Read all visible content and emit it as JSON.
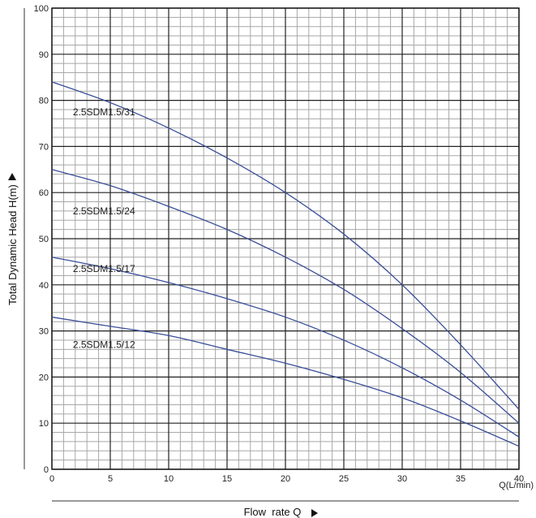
{
  "chart_data": {
    "type": "line",
    "xlabel": "Flow  rate Q",
    "xunit": "Q(L/min)",
    "ylabel": "Total Dynamic Head H(m)",
    "xlim": [
      0,
      40
    ],
    "ylim": [
      0,
      100
    ],
    "x_ticks": [
      0,
      5,
      10,
      15,
      20,
      25,
      30,
      35,
      40
    ],
    "y_ticks": [
      0,
      10,
      20,
      30,
      40,
      50,
      60,
      70,
      80,
      90,
      100
    ],
    "grid": true,
    "series": [
      {
        "name": "2.5SDM1.5/31",
        "x": [
          0,
          5,
          10,
          15,
          20,
          25,
          30,
          35,
          40
        ],
        "y": [
          84,
          79.5,
          74,
          67.5,
          60,
          51,
          40,
          27,
          13
        ]
      },
      {
        "name": "2.5SDM1.5/24",
        "x": [
          0,
          5,
          10,
          15,
          20,
          25,
          30,
          35,
          40
        ],
        "y": [
          65,
          61.5,
          57,
          52,
          46,
          39,
          30.5,
          21,
          10
        ]
      },
      {
        "name": "2.5SDM1.5/17",
        "x": [
          0,
          5,
          10,
          15,
          20,
          25,
          30,
          35,
          40
        ],
        "y": [
          46,
          43.5,
          40.5,
          37,
          33,
          28,
          22,
          15,
          7
        ]
      },
      {
        "name": "2.5SDM1.5/12",
        "x": [
          0,
          5,
          10,
          15,
          20,
          25,
          30,
          35,
          40
        ],
        "y": [
          33,
          31,
          29,
          26,
          23,
          19.5,
          15.5,
          10.5,
          5
        ]
      }
    ],
    "line_color": "#3a4f9a"
  }
}
